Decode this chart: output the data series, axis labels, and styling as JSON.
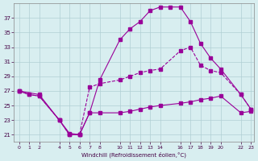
{
  "xlabel": "Windchill (Refroidissement éolien,°C)",
  "background_color": "#d8eef0",
  "grid_color": "#b0cfd4",
  "line_color": "#990099",
  "tick_color": "#440044",
  "x_ticks": [
    0,
    1,
    2,
    4,
    5,
    6,
    7,
    8,
    10,
    11,
    12,
    13,
    14,
    16,
    17,
    18,
    19,
    20,
    22,
    23
  ],
  "ylim": [
    20,
    39
  ],
  "xlim": [
    -0.5,
    23.3
  ],
  "yticks": [
    21,
    23,
    25,
    27,
    29,
    31,
    33,
    35,
    37
  ],
  "series1_x": [
    0,
    1,
    2,
    4,
    5,
    6,
    7,
    8,
    10,
    11,
    12,
    13,
    14,
    16,
    17,
    18,
    19,
    20,
    22,
    23
  ],
  "series1_y": [
    27,
    26.5,
    26.3,
    23.0,
    21.0,
    21.0,
    24.0,
    24.0,
    24.0,
    24.2,
    24.5,
    24.8,
    25.0,
    25.3,
    25.5,
    25.8,
    26.0,
    26.3,
    24.0,
    24.2
  ],
  "series2_x": [
    0,
    1,
    2,
    4,
    5,
    6,
    7,
    8,
    10,
    11,
    12,
    13,
    14,
    16,
    17,
    18,
    19,
    20,
    22,
    23
  ],
  "series2_y": [
    27,
    26.5,
    26.3,
    23.0,
    21.0,
    21.0,
    27.5,
    28.0,
    28.5,
    29.0,
    29.5,
    29.8,
    30.0,
    32.5,
    33.0,
    30.5,
    29.8,
    29.5,
    26.5,
    24.5
  ],
  "series3_x": [
    0,
    2,
    4,
    5,
    6,
    7,
    8,
    10,
    11,
    12,
    13,
    14,
    15,
    16,
    17,
    18,
    19,
    20,
    22,
    23
  ],
  "series3_y": [
    27,
    26.5,
    23.0,
    21.2,
    21.0,
    24.0,
    28.5,
    34.0,
    35.5,
    36.5,
    38.0,
    38.5,
    38.5,
    38.5,
    36.5,
    33.5,
    31.5,
    30.0,
    26.5,
    24.5
  ]
}
